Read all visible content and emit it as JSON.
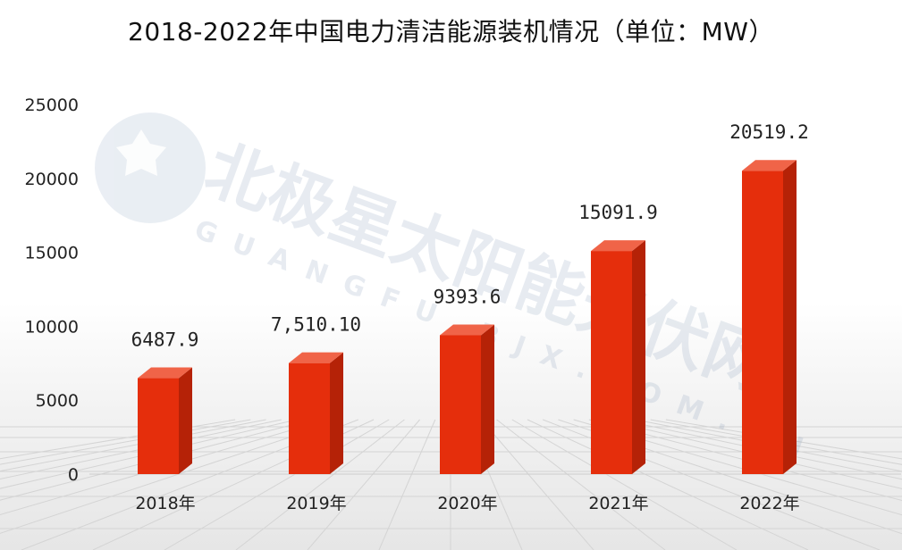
{
  "chart_data": {
    "type": "bar",
    "title": "2018-2022年中国电力清洁能源装机情况（单位：MW）",
    "categories": [
      "2018年",
      "2019年",
      "2020年",
      "2021年",
      "2022年"
    ],
    "values": [
      6487.9,
      7510.1,
      9393.6,
      15091.9,
      20519.2
    ],
    "data_labels": [
      "6487.9",
      "7,510.10",
      "9393.6",
      "15091.9",
      "20519.2"
    ],
    "yticks": [
      "0",
      "5000",
      "10000",
      "15000",
      "20000",
      "25000"
    ],
    "ylim": [
      0,
      25000
    ],
    "grid": false,
    "legend": "none"
  },
  "colors": {
    "bar_front": "#e52e0c",
    "bar_top": "#f06448",
    "bar_side": "#b52207",
    "axis": "#cccccc"
  },
  "watermark": {
    "cn": "北极星太阳能光伏网",
    "en": "GUANGFU.BJX.COM.CN"
  }
}
